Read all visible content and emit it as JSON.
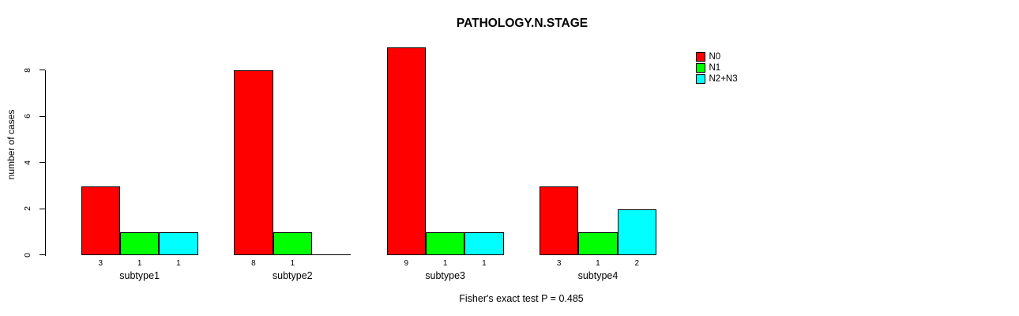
{
  "chart_data": {
    "type": "bar",
    "title": "PATHOLOGY.N.STAGE",
    "ylabel": "number of cases",
    "xlabel": "",
    "categories": [
      "subtype1",
      "subtype2",
      "subtype3",
      "subtype4"
    ],
    "series": [
      {
        "name": "N0",
        "color": "#ff0000",
        "values": [
          3,
          8,
          9,
          3
        ]
      },
      {
        "name": "N1",
        "color": "#00ff00",
        "values": [
          1,
          1,
          1,
          1
        ]
      },
      {
        "name": "N2+N3",
        "color": "#00ffff",
        "values": [
          1,
          0,
          1,
          2
        ]
      }
    ],
    "yticks": [
      0,
      2,
      4,
      6,
      8
    ],
    "ylim": [
      0,
      9
    ],
    "grid": false,
    "legend_position": "top-right",
    "bar_value_labels_shown": true,
    "zero_value_labels_hidden": true,
    "annotation": "Fisher's exact test P = 0.485"
  }
}
